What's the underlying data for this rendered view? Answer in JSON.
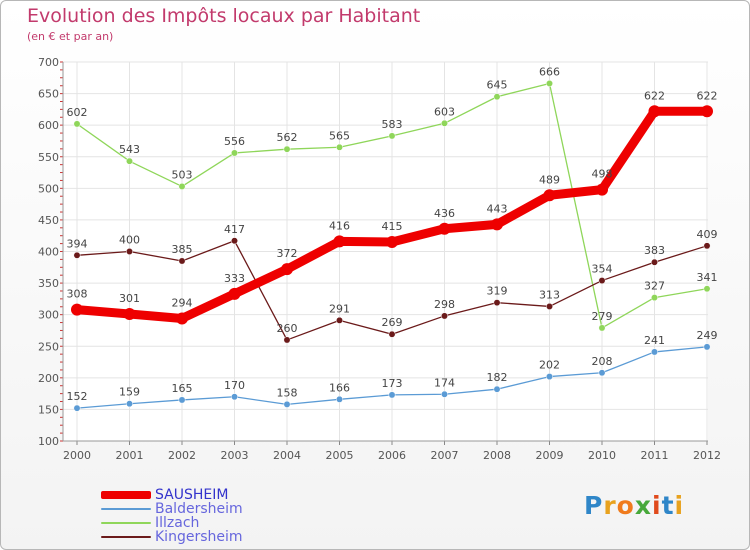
{
  "title": "Evolution des Impôts locaux par Habitant",
  "subtitle": "(en € et par an)",
  "logo": {
    "letters": [
      "P",
      "r",
      "o",
      "x",
      "i",
      "t",
      "i"
    ],
    "colors": [
      "#2f86c8",
      "#e8a21e",
      "#f07b1c",
      "#47a83a",
      "#e04a1c",
      "#2f86c8",
      "#e8a21e"
    ]
  },
  "chart_data": {
    "type": "line",
    "title": "Evolution des Impôts locaux par Habitant",
    "subtitle": "(en € et par an)",
    "xlabel": "",
    "ylabel": "",
    "ylim": [
      100,
      700
    ],
    "yticks": [
      100,
      150,
      200,
      250,
      300,
      350,
      400,
      450,
      500,
      550,
      600,
      650,
      700
    ],
    "grid": true,
    "legend_position": "bottom-left",
    "categories": [
      "2000",
      "2001",
      "2002",
      "2003",
      "2004",
      "2005",
      "2006",
      "2007",
      "2008",
      "2009",
      "2010",
      "2011",
      "2012"
    ],
    "series": [
      {
        "name": "SAUSHEIM",
        "color": "#ee0000",
        "emphasis": true,
        "values": [
          308,
          301,
          294,
          333,
          372,
          416,
          415,
          436,
          443,
          489,
          498,
          622,
          622
        ]
      },
      {
        "name": "Baldersheim",
        "color": "#5b9bd5",
        "emphasis": false,
        "values": [
          152,
          159,
          165,
          170,
          158,
          166,
          173,
          174,
          182,
          202,
          208,
          241,
          249
        ]
      },
      {
        "name": "Illzach",
        "color": "#8fd65a",
        "emphasis": false,
        "values": [
          602,
          543,
          503,
          556,
          562,
          565,
          583,
          603,
          645,
          666,
          279,
          327,
          341
        ]
      },
      {
        "name": "Kingersheim",
        "color": "#6b1a1a",
        "emphasis": false,
        "values": [
          394,
          400,
          385,
          417,
          260,
          291,
          269,
          298,
          319,
          313,
          354,
          383,
          409
        ]
      }
    ]
  }
}
